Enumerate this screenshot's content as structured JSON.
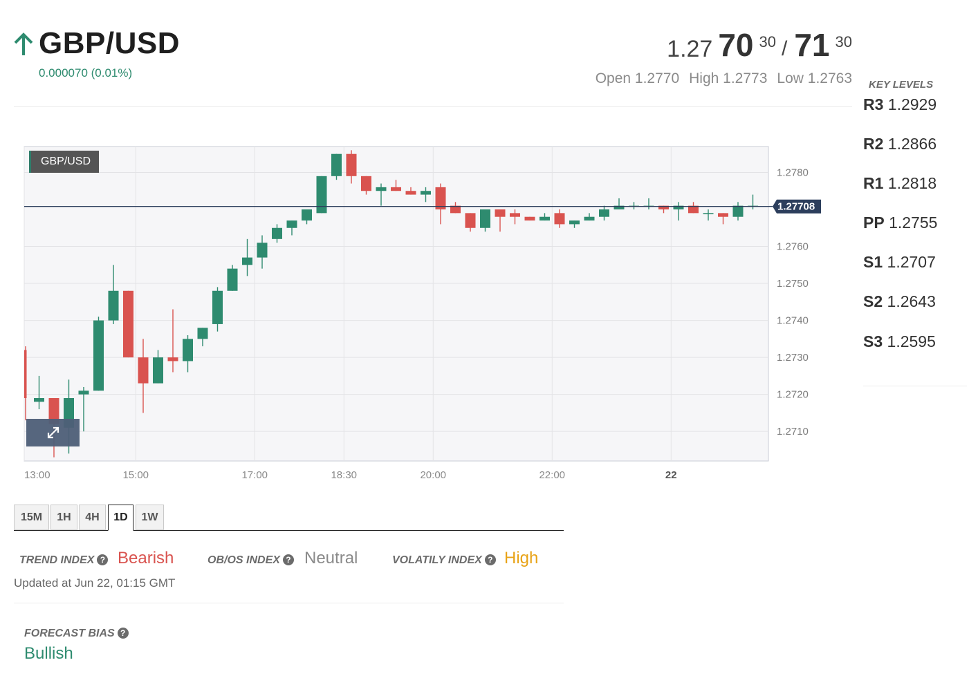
{
  "header": {
    "pair": "GBP/USD",
    "change": "0.000070 (0.01%)",
    "quote": {
      "bid_base": "1.27",
      "bid_big": "70",
      "bid_sup": "30",
      "separator": "/",
      "ask_big": "71",
      "ask_sup": "30"
    },
    "open": "Open 1.2770",
    "high": "High 1.2773",
    "low": "Low 1.2763"
  },
  "key_levels": {
    "title": "KEY LEVELS",
    "levels": [
      {
        "name": "R3",
        "value": "1.2929"
      },
      {
        "name": "R2",
        "value": "1.2866"
      },
      {
        "name": "R1",
        "value": "1.2818"
      },
      {
        "name": "PP",
        "value": "1.2755"
      },
      {
        "name": "S1",
        "value": "1.2707"
      },
      {
        "name": "S2",
        "value": "1.2643"
      },
      {
        "name": "S3",
        "value": "1.2595"
      }
    ]
  },
  "chart_data": {
    "type": "candlestick",
    "tag": "GBP/USD",
    "current_price": 1.27708,
    "current_price_label": "1.27708",
    "ylim": [
      1.2702,
      1.2787
    ],
    "y_ticks": [
      1.278,
      1.276,
      1.275,
      1.274,
      1.273,
      1.272,
      1.271
    ],
    "y_tick_labels": [
      "1.2780",
      "1.2760",
      "1.2750",
      "1.2740",
      "1.2730",
      "1.2720",
      "1.2710"
    ],
    "x_ticks": [
      {
        "label": "13:00",
        "bar": 0
      },
      {
        "label": "15:00",
        "bar": 7.5
      },
      {
        "label": "17:00",
        "bar": 15.5
      },
      {
        "label": "18:30",
        "bar": 21.5
      },
      {
        "label": "20:00",
        "bar": 27.5
      },
      {
        "label": "22:00",
        "bar": 35.5
      },
      {
        "label": "22",
        "bar": 43.5,
        "bold": true
      }
    ],
    "candles": [
      {
        "o": 1.2732,
        "h": 1.2733,
        "l": 1.2713,
        "c": 1.2719
      },
      {
        "o": 1.2718,
        "h": 1.2725,
        "l": 1.2716,
        "c": 1.2719
      },
      {
        "o": 1.2719,
        "h": 1.2719,
        "l": 1.2703,
        "c": 1.2712
      },
      {
        "o": 1.2711,
        "h": 1.2724,
        "l": 1.2704,
        "c": 1.2719
      },
      {
        "o": 1.272,
        "h": 1.2722,
        "l": 1.271,
        "c": 1.2721
      },
      {
        "o": 1.2721,
        "h": 1.2741,
        "l": 1.2721,
        "c": 1.274
      },
      {
        "o": 1.274,
        "h": 1.2755,
        "l": 1.2739,
        "c": 1.2748
      },
      {
        "o": 1.2748,
        "h": 1.2748,
        "l": 1.273,
        "c": 1.273
      },
      {
        "o": 1.273,
        "h": 1.2735,
        "l": 1.2715,
        "c": 1.2723
      },
      {
        "o": 1.2723,
        "h": 1.2732,
        "l": 1.2723,
        "c": 1.273
      },
      {
        "o": 1.273,
        "h": 1.2743,
        "l": 1.2726,
        "c": 1.2729
      },
      {
        "o": 1.2729,
        "h": 1.2736,
        "l": 1.2726,
        "c": 1.2735
      },
      {
        "o": 1.2735,
        "h": 1.2738,
        "l": 1.2733,
        "c": 1.2738
      },
      {
        "o": 1.2739,
        "h": 1.2749,
        "l": 1.2737,
        "c": 1.2748
      },
      {
        "o": 1.2748,
        "h": 1.2755,
        "l": 1.2748,
        "c": 1.2754
      },
      {
        "o": 1.2755,
        "h": 1.2762,
        "l": 1.2752,
        "c": 1.2757
      },
      {
        "o": 1.2757,
        "h": 1.2763,
        "l": 1.2754,
        "c": 1.2761
      },
      {
        "o": 1.2762,
        "h": 1.2766,
        "l": 1.2761,
        "c": 1.2765
      },
      {
        "o": 1.2765,
        "h": 1.2767,
        "l": 1.2763,
        "c": 1.2767
      },
      {
        "o": 1.2767,
        "h": 1.277,
        "l": 1.2766,
        "c": 1.277
      },
      {
        "o": 1.2769,
        "h": 1.2779,
        "l": 1.2769,
        "c": 1.2779
      },
      {
        "o": 1.2779,
        "h": 1.2785,
        "l": 1.2778,
        "c": 1.2785
      },
      {
        "o": 1.2785,
        "h": 1.2786,
        "l": 1.2777,
        "c": 1.2779
      },
      {
        "o": 1.2779,
        "h": 1.2779,
        "l": 1.2774,
        "c": 1.2775
      },
      {
        "o": 1.2775,
        "h": 1.2777,
        "l": 1.2771,
        "c": 1.2776
      },
      {
        "o": 1.2776,
        "h": 1.2778,
        "l": 1.2775,
        "c": 1.2775
      },
      {
        "o": 1.2775,
        "h": 1.2776,
        "l": 1.2774,
        "c": 1.2774
      },
      {
        "o": 1.2774,
        "h": 1.2776,
        "l": 1.2772,
        "c": 1.2775
      },
      {
        "o": 1.2776,
        "h": 1.2777,
        "l": 1.2766,
        "c": 1.277
      },
      {
        "o": 1.2771,
        "h": 1.2772,
        "l": 1.2769,
        "c": 1.2769
      },
      {
        "o": 1.2769,
        "h": 1.2769,
        "l": 1.2764,
        "c": 1.2765
      },
      {
        "o": 1.2765,
        "h": 1.277,
        "l": 1.2764,
        "c": 1.277
      },
      {
        "o": 1.277,
        "h": 1.277,
        "l": 1.2764,
        "c": 1.2768
      },
      {
        "o": 1.2769,
        "h": 1.277,
        "l": 1.2766,
        "c": 1.2768
      },
      {
        "o": 1.2768,
        "h": 1.2768,
        "l": 1.2767,
        "c": 1.2767
      },
      {
        "o": 1.2767,
        "h": 1.2769,
        "l": 1.2767,
        "c": 1.2768
      },
      {
        "o": 1.2769,
        "h": 1.277,
        "l": 1.2765,
        "c": 1.2766
      },
      {
        "o": 1.2766,
        "h": 1.2767,
        "l": 1.2765,
        "c": 1.2767
      },
      {
        "o": 1.2767,
        "h": 1.2769,
        "l": 1.2767,
        "c": 1.2768
      },
      {
        "o": 1.2768,
        "h": 1.2771,
        "l": 1.2767,
        "c": 1.277
      },
      {
        "o": 1.277,
        "h": 1.2773,
        "l": 1.277,
        "c": 1.2771
      },
      {
        "o": 1.2771,
        "h": 1.2772,
        "l": 1.277,
        "c": 1.2771
      },
      {
        "o": 1.2771,
        "h": 1.2773,
        "l": 1.277,
        "c": 1.2771
      },
      {
        "o": 1.2771,
        "h": 1.2771,
        "l": 1.2769,
        "c": 1.277
      },
      {
        "o": 1.277,
        "h": 1.2772,
        "l": 1.2767,
        "c": 1.2771
      },
      {
        "o": 1.2771,
        "h": 1.2772,
        "l": 1.2769,
        "c": 1.2769
      },
      {
        "o": 1.2769,
        "h": 1.277,
        "l": 1.2767,
        "c": 1.2769
      },
      {
        "o": 1.2769,
        "h": 1.2769,
        "l": 1.2766,
        "c": 1.2768
      },
      {
        "o": 1.2768,
        "h": 1.2772,
        "l": 1.2767,
        "c": 1.2771
      },
      {
        "o": 1.2771,
        "h": 1.2774,
        "l": 1.277,
        "c": 1.2771
      }
    ],
    "colors": {
      "up": "#2e8b6f",
      "down": "#d9534f",
      "price_line": "#2c3e5c",
      "price_tag": "#2c3e5c"
    }
  },
  "tabs": [
    "15M",
    "1H",
    "4H",
    "1D",
    "1W"
  ],
  "active_tab": "1D",
  "indices": {
    "trend_label": "TREND INDEX",
    "trend_value": "Bearish",
    "obos_label": "OB/OS INDEX",
    "obos_value": "Neutral",
    "volatility_label": "VOLATILY INDEX",
    "volatility_value": "High",
    "help_glyph": "?",
    "colors": {
      "bearish": "#d9534f",
      "neutral": "#8a8a8a",
      "high": "#e8a317"
    }
  },
  "updated": "Updated at Jun 22, 01:15 GMT",
  "forecast": {
    "label": "FORECAST BIAS",
    "value": "Bullish"
  },
  "icons": {
    "change_direction": "arrow-up-icon",
    "expand": "expand-icon",
    "help": "question-circle-icon"
  }
}
